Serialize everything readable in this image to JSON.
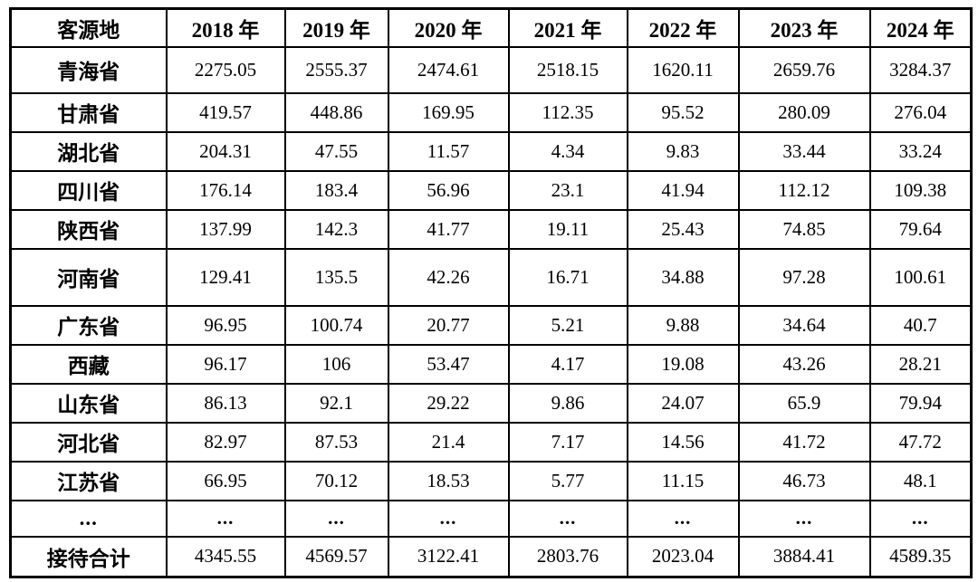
{
  "table": {
    "header": {
      "source_column": "客源地",
      "year_columns": [
        "2018 年",
        "2019 年",
        "2020 年",
        "2021 年",
        "2022 年",
        "2023 年",
        "2024 年"
      ]
    },
    "rows": [
      {
        "label": "青海省",
        "values": [
          "2275.05",
          "2555.37",
          "2474.61",
          "2518.15",
          "1620.11",
          "2659.76",
          "3284.37"
        ]
      },
      {
        "label": "甘肃省",
        "values": [
          "419.57",
          "448.86",
          "169.95",
          "112.35",
          "95.52",
          "280.09",
          "276.04"
        ]
      },
      {
        "label": "湖北省",
        "values": [
          "204.31",
          "47.55",
          "11.57",
          "4.34",
          "9.83",
          "33.44",
          "33.24"
        ]
      },
      {
        "label": "四川省",
        "values": [
          "176.14",
          "183.4",
          "56.96",
          "23.1",
          "41.94",
          "112.12",
          "109.38"
        ]
      },
      {
        "label": "陕西省",
        "values": [
          "137.99",
          "142.3",
          "41.77",
          "19.11",
          "25.43",
          "74.85",
          "79.64"
        ]
      },
      {
        "label": "河南省",
        "values": [
          "129.41",
          "135.5",
          "42.26",
          "16.71",
          "34.88",
          "97.28",
          "100.61"
        ]
      },
      {
        "label": "广东省",
        "values": [
          "96.95",
          "100.74",
          "20.77",
          "5.21",
          "9.88",
          "34.64",
          "40.7"
        ]
      },
      {
        "label": "西藏",
        "values": [
          "96.17",
          "106",
          "53.47",
          "4.17",
          "19.08",
          "43.26",
          "28.21"
        ]
      },
      {
        "label": "山东省",
        "values": [
          "86.13",
          "92.1",
          "29.22",
          "9.86",
          "24.07",
          "65.9",
          "79.94"
        ]
      },
      {
        "label": "河北省",
        "values": [
          "82.97",
          "87.53",
          "21.4",
          "7.17",
          "14.56",
          "41.72",
          "47.72"
        ]
      },
      {
        "label": "江苏省",
        "values": [
          "66.95",
          "70.12",
          "18.53",
          "5.77",
          "11.15",
          "46.73",
          "48.1"
        ]
      },
      {
        "label": "...",
        "values": [
          "...",
          "...",
          "...",
          "...",
          "...",
          "...",
          "..."
        ]
      },
      {
        "label": "接待合计",
        "values": [
          "4345.55",
          "4569.57",
          "3122.41",
          "2803.76",
          "2023.04",
          "3884.41",
          "4589.35"
        ]
      }
    ],
    "colors": {
      "border": "#000000",
      "text": "#000000",
      "background": "#ffffff"
    }
  }
}
